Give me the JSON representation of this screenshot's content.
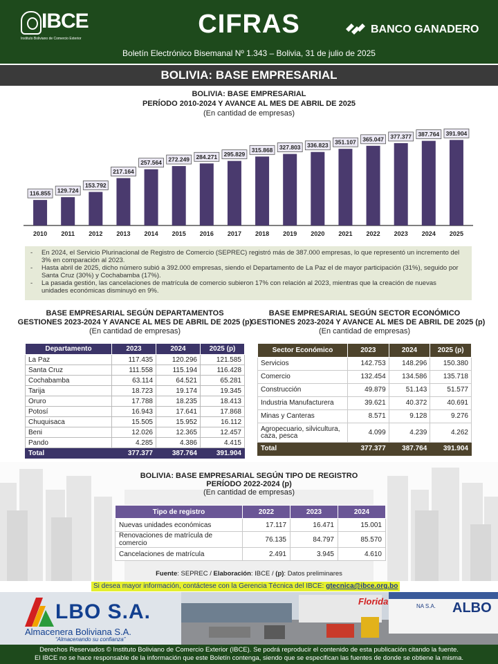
{
  "header": {
    "logo_text": "IBCE",
    "logo_sub": "Instituto Boliviano de Comercio Exterior",
    "title": "CIFRAS",
    "sponsor": "BANCO GANADERO",
    "bulletin": "Boletín Electrónico Bisemanal Nº 1.343 – Bolivia, 31 de julio de 2025"
  },
  "section": {
    "title": "BOLIVIA: BASE EMPRESARIAL"
  },
  "chart_block": {
    "title1": "BOLIVIA: BASE EMPRESARIAL",
    "title2": "PERÍODO 2010-2024 Y AVANCE AL MES DE ABRIL DE 2025",
    "subtitle": "(En cantidad de empresas)"
  },
  "chart_data": {
    "type": "bar",
    "categories": [
      "2010",
      "2011",
      "2012",
      "2013",
      "2014",
      "2015",
      "2016",
      "2017",
      "2018",
      "2019",
      "2020",
      "2021",
      "2022",
      "2023",
      "2024",
      "2025"
    ],
    "values": [
      116855,
      129724,
      153792,
      217164,
      257564,
      272249,
      284271,
      295829,
      315868,
      327803,
      336823,
      351107,
      365047,
      377377,
      387764,
      391904
    ],
    "labels": [
      "116.855",
      "129.724",
      "153.792",
      "217.164",
      "257.564",
      "272.249",
      "284.271",
      "295.829",
      "315.868",
      "327.803",
      "336.823",
      "351.107",
      "365.047",
      "377.377",
      "387.764",
      "391.904"
    ],
    "title": "BOLIVIA: BASE EMPRESARIAL PERÍODO 2010-2024 Y AVANCE AL MES DE ABRIL DE 2025",
    "xlabel": "",
    "ylabel": "",
    "ylim": [
      0,
      450000
    ],
    "bar_color": "#4a3a6e",
    "grid": false
  },
  "notes": [
    "En 2024, el Servicio Plurinacional de Registro de Comercio (SEPREC) registró más de 387.000 empresas, lo que representó un incremento del 3% en comparación al 2023.",
    "Hasta abril de 2025, dicho número subió a 392.000 empresas, siendo el Departamento de La Paz el de mayor participación (31%), seguido por Santa Cruz (30%) y Cochabamba (17%).",
    "La pasada gestión, las cancelaciones de matrícula de comercio subieron 17% con relación al 2023, mientras que la creación de nuevas unidades económicas disminuyó en 9%."
  ],
  "notes_bullet": "-",
  "dept_table": {
    "title1": "BASE EMPRESARIAL SEGÚN DEPARTAMENTOS",
    "title2": "GESTIONES 2023-2024 Y AVANCE AL MES DE ABRIL DE 2025 (p)",
    "subtitle": "(En cantidad de empresas)",
    "headers": [
      "Departamento",
      "2023",
      "2024",
      "2025 (p)"
    ],
    "rows": [
      [
        "La Paz",
        "117.435",
        "120.296",
        "121.585"
      ],
      [
        "Santa Cruz",
        "111.558",
        "115.194",
        "116.428"
      ],
      [
        "Cochabamba",
        "63.114",
        "64.521",
        "65.281"
      ],
      [
        "Tarija",
        "18.723",
        "19.174",
        "19.345"
      ],
      [
        "Oruro",
        "17.788",
        "18.235",
        "18.413"
      ],
      [
        "Potosí",
        "16.943",
        "17.641",
        "17.868"
      ],
      [
        "Chuquisaca",
        "15.505",
        "15.952",
        "16.112"
      ],
      [
        "Beni",
        "12.026",
        "12.365",
        "12.457"
      ],
      [
        "Pando",
        "4.285",
        "4.386",
        "4.415"
      ]
    ],
    "total": [
      "Total",
      "377.377",
      "387.764",
      "391.904"
    ]
  },
  "sector_table": {
    "title1": "BASE EMPRESARIAL SEGÚN SECTOR ECONÓMICO",
    "title2": "GESTIONES 2023-2024 Y AVANCE AL MES DE ABRIL DE 2025 (p)",
    "subtitle": "(En cantidad de empresas)",
    "headers": [
      "Sector Económico",
      "2023",
      "2024",
      "2025 (p)"
    ],
    "rows": [
      [
        "Servicios",
        "142.753",
        "148.296",
        "150.380"
      ],
      [
        "Comercio",
        "132.454",
        "134.586",
        "135.718"
      ],
      [
        "Construcción",
        "49.879",
        "51.143",
        "51.577"
      ],
      [
        "Industria Manufacturera",
        "39.621",
        "40.372",
        "40.691"
      ],
      [
        "Minas y Canteras",
        "8.571",
        "9.128",
        "9.276"
      ],
      [
        "Agropecuario, silvicultura, caza, pesca",
        "4.099",
        "4.239",
        "4.262"
      ]
    ],
    "total": [
      "Total",
      "377.377",
      "387.764",
      "391.904"
    ]
  },
  "registry_table": {
    "title1": "BOLIVIA: BASE EMPRESARIAL SEGÚN TIPO DE REGISTRO",
    "title2": "PERÍODO 2022-2024 (p)",
    "subtitle": "(En cantidad de empresas)",
    "headers": [
      "Tipo de registro",
      "2022",
      "2023",
      "2024"
    ],
    "rows": [
      [
        "Nuevas unidades económicas",
        "17.117",
        "16.471",
        "15.001"
      ],
      [
        "Renovaciones de matrícula de comercio",
        "76.135",
        "84.797",
        "85.570"
      ],
      [
        "Cancelaciones de matrícula",
        "2.491",
        "3.945",
        "4.610"
      ]
    ]
  },
  "source": {
    "label_fuente": "Fuente",
    "fuente": "SEPREC",
    "label_elab": "Elaboración",
    "elab": "IBCE",
    "label_p": "(p)",
    "p_text": "Datos preliminares"
  },
  "contact": {
    "text": "Si desea mayor información, contáctese con la Gerencia Técnica del IBCE:",
    "email": "gtecnica@ibce.org.bo"
  },
  "ad": {
    "name": "LBO S.A.",
    "company": "Almacenera Boliviana S.A.",
    "tagline": "“Almacenando su confianza”",
    "truck_text": "Florida",
    "wall_text": "ALBO",
    "wall_small": "NA S.A."
  },
  "footer": {
    "line1": "Derechos Reservados © Instituto Boliviano de Comercio Exterior (IBCE). Se podrá reproducir el contenido de esta publicación citando la fuente.",
    "line2": "El IBCE no se hace responsable de la información que este Boletín contenga, siendo que se especifican las fuentes de donde se obtiene la misma."
  },
  "colors": {
    "header_green": "#1e4a1c",
    "section_bar": "#3a3a3a",
    "chart_bar": "#4a3a6e",
    "dept_table": "#3b3468",
    "sector_table": "#4d432c",
    "registry_table": "#6a5696",
    "notes_bg": "#e6ead8",
    "contact_highlight": "#e4ef2e"
  }
}
